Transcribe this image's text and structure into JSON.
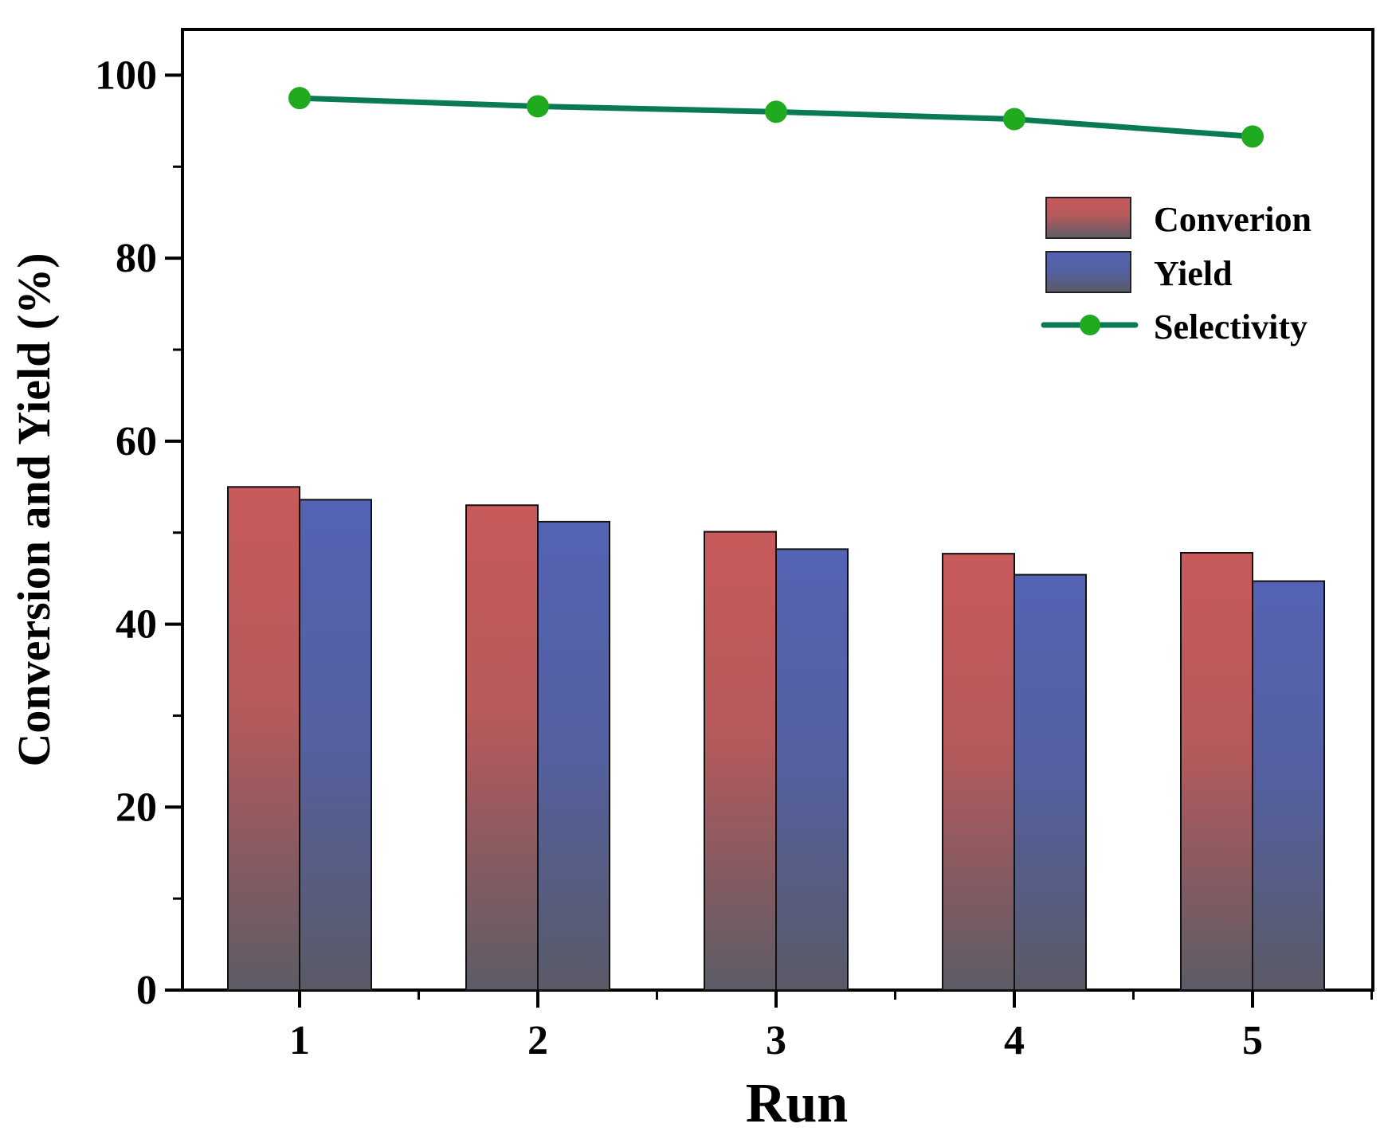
{
  "chart_data": {
    "type": "bar",
    "xlabel": "Run",
    "ylabel": "Conversion and Yield (%)",
    "categories": [
      "1",
      "2",
      "3",
      "4",
      "5"
    ],
    "ylim": [
      0,
      105
    ],
    "yticks": [
      "0",
      "20",
      "40",
      "60",
      "80",
      "100"
    ],
    "ytick_values": [
      0,
      20,
      40,
      60,
      80,
      100
    ],
    "series": [
      {
        "name": "Converion",
        "kind": "bar",
        "color_top": "#c85a5a",
        "color_bottom": "#5c5c66",
        "values": [
          55.0,
          53.0,
          50.1,
          47.7,
          47.8
        ]
      },
      {
        "name": "Yield",
        "kind": "bar",
        "color_top": "#5463b4",
        "color_bottom": "#5a5a66",
        "values": [
          53.6,
          51.2,
          48.2,
          45.4,
          44.7
        ]
      },
      {
        "name": "Selectivity",
        "kind": "line",
        "color": "#0a7a55",
        "marker_color": "#1faa1f",
        "values": [
          97.5,
          96.6,
          96.0,
          95.2,
          93.3
        ]
      }
    ],
    "legend_position": "top-right"
  }
}
